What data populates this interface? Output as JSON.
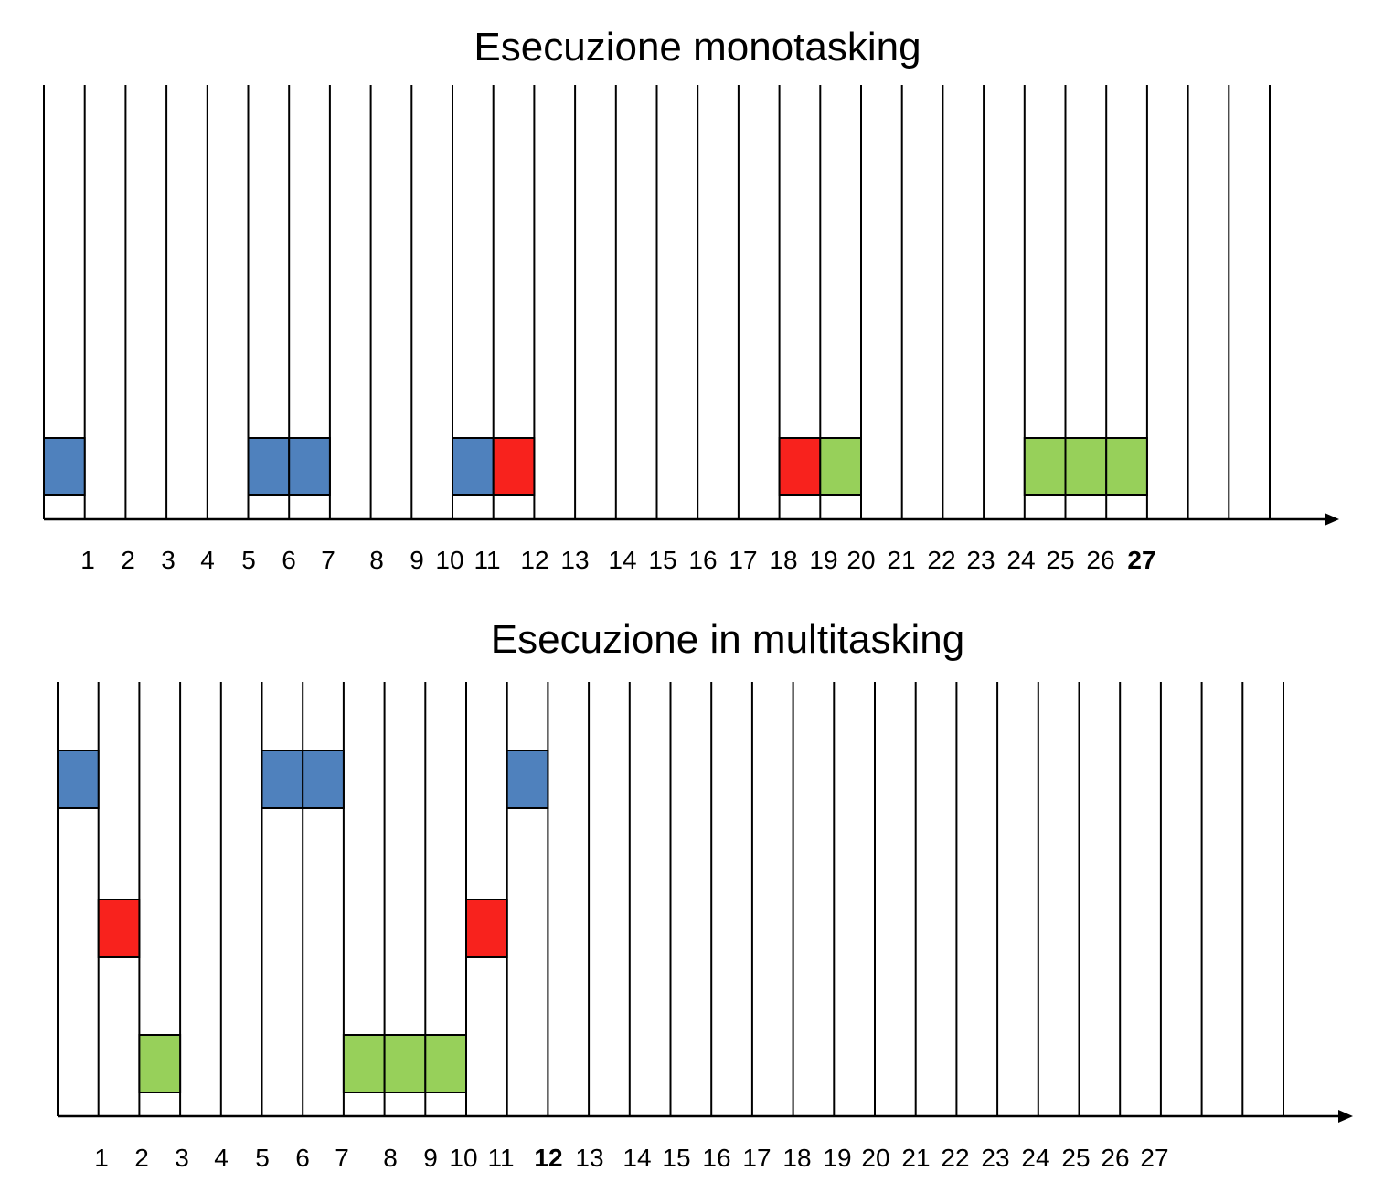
{
  "colors": {
    "blue": "#4f81bd",
    "red": "#f8221d",
    "green": "#97d05a",
    "line": "#000000"
  },
  "panels": [
    {
      "id": "monotasking",
      "title": "Esecuzione  monotasking",
      "tick_labels": [
        "1",
        "2",
        "3",
        "4",
        "5",
        "6",
        "7",
        "8",
        "9",
        "10",
        "11",
        "12",
        "13",
        "14",
        "15",
        "16",
        "17",
        "18",
        "19",
        "20",
        "21",
        "22",
        "23",
        "24",
        "25",
        "26",
        "27"
      ],
      "bold_tick": "27",
      "slots": [
        {
          "slot": 0,
          "color": "blue",
          "lane": 0
        },
        {
          "slot": 5,
          "color": "blue",
          "lane": 0
        },
        {
          "slot": 6,
          "color": "blue",
          "lane": 0
        },
        {
          "slot": 10,
          "color": "blue",
          "lane": 0
        },
        {
          "slot": 11,
          "color": "red",
          "lane": 0
        },
        {
          "slot": 18,
          "color": "red",
          "lane": 0
        },
        {
          "slot": 19,
          "color": "green",
          "lane": 0
        },
        {
          "slot": 24,
          "color": "green",
          "lane": 0
        },
        {
          "slot": 25,
          "color": "green",
          "lane": 0
        },
        {
          "slot": 26,
          "color": "green",
          "lane": 0
        }
      ]
    },
    {
      "id": "multitasking",
      "title": "Esecuzione  in multitasking",
      "tick_labels": [
        "1",
        "2",
        "3",
        "4",
        "5",
        "6",
        "7",
        "8",
        "9",
        "10",
        "11",
        "12",
        "13",
        "14",
        "15",
        "16",
        "17",
        "18",
        "19",
        "20",
        "21",
        "22",
        "23",
        "24",
        "25",
        "26",
        "27"
      ],
      "bold_tick": "12",
      "slots": [
        {
          "slot": 0,
          "color": "blue",
          "lane": 0
        },
        {
          "slot": 5,
          "color": "blue",
          "lane": 0
        },
        {
          "slot": 6,
          "color": "blue",
          "lane": 0
        },
        {
          "slot": 11,
          "color": "blue",
          "lane": 0
        },
        {
          "slot": 1,
          "color": "red",
          "lane": 1
        },
        {
          "slot": 10,
          "color": "red",
          "lane": 1
        },
        {
          "slot": 2,
          "color": "green",
          "lane": 2
        },
        {
          "slot": 7,
          "color": "green",
          "lane": 2
        },
        {
          "slot": 8,
          "color": "green",
          "lane": 2
        },
        {
          "slot": 9,
          "color": "green",
          "lane": 2
        }
      ]
    }
  ]
}
